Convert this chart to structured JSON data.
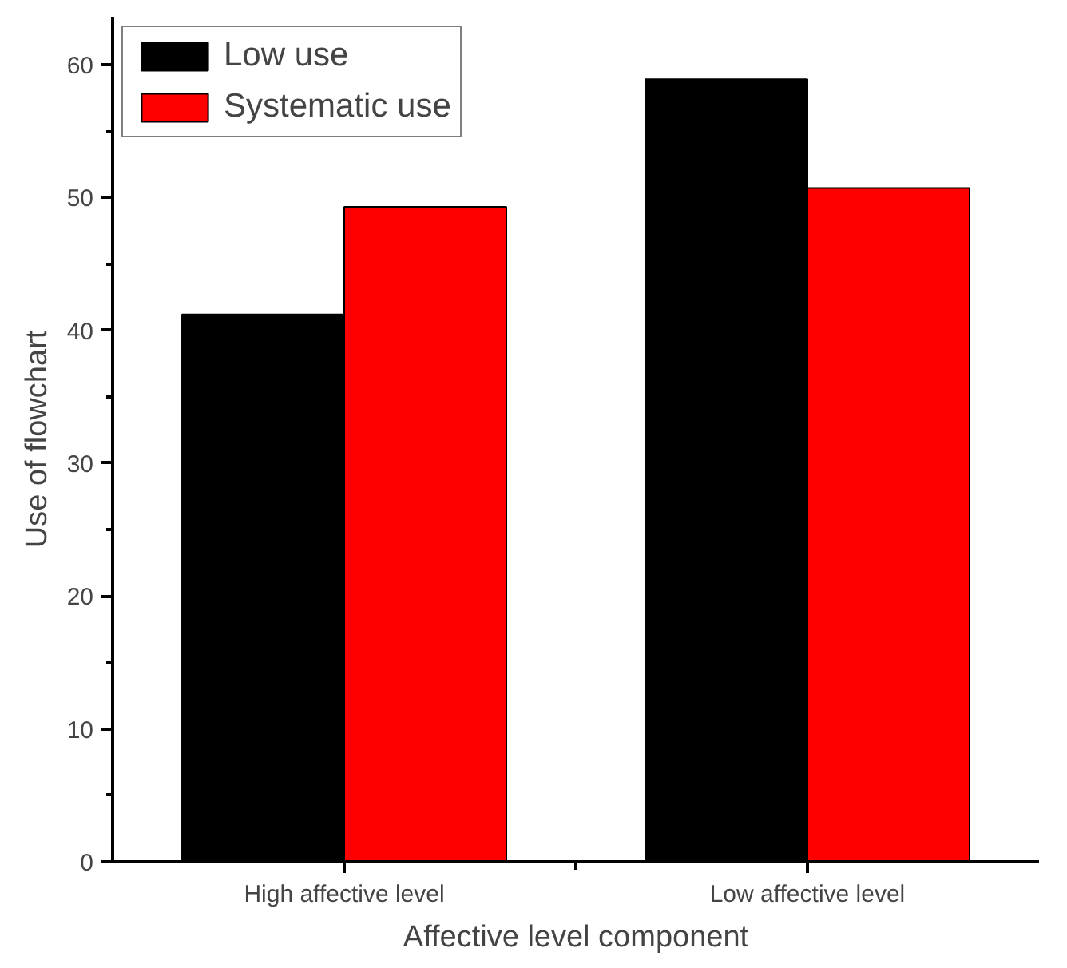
{
  "chart_data": {
    "type": "bar",
    "xlabel": "Affective level component",
    "ylabel": "Use of flowchart",
    "categories": [
      "High affective level",
      "Low affective level"
    ],
    "series": [
      {
        "name": "Low use",
        "color": "#000000",
        "values": [
          41.2,
          58.9
        ]
      },
      {
        "name": "Systematic use",
        "color": "#ff0000",
        "values": [
          49.3,
          50.7
        ]
      }
    ],
    "ylim": [
      0,
      63.6
    ],
    "yticks": [
      0,
      10,
      20,
      30,
      40,
      50,
      60
    ],
    "grid": false,
    "legend": "top left"
  }
}
